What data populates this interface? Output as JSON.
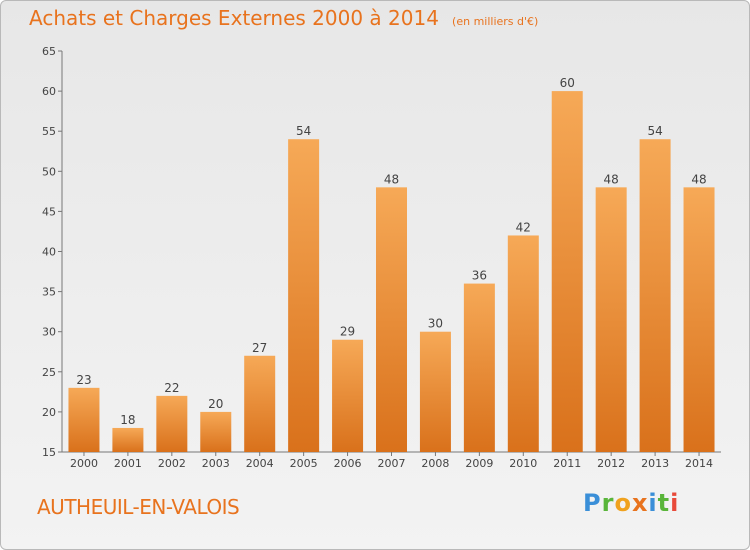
{
  "header": {
    "title": "Achats et Charges Externes 2000 à 2014",
    "unit": "(en milliers d'€)"
  },
  "footer": {
    "place": "AUTHEUIL-EN-VALOIS",
    "logo": "Proxiti"
  },
  "colors": {
    "bar_light": "#f6a957",
    "bar_dark": "#d9711b",
    "text_accent": "#e8731e"
  },
  "chart_data": {
    "type": "bar",
    "title": "Achats et Charges Externes 2000 à 2014",
    "subtitle": "(en milliers d'€)",
    "xlabel": "",
    "ylabel": "",
    "categories": [
      "2000",
      "2001",
      "2002",
      "2003",
      "2004",
      "2005",
      "2006",
      "2007",
      "2008",
      "2009",
      "2010",
      "2011",
      "2012",
      "2013",
      "2014"
    ],
    "values": [
      23,
      18,
      22,
      20,
      27,
      54,
      29,
      48,
      30,
      36,
      42,
      60,
      48,
      54,
      48
    ],
    "ylim": [
      15,
      65
    ],
    "yticks": [
      15,
      20,
      25,
      30,
      35,
      40,
      45,
      50,
      55,
      60,
      65
    ],
    "grid": false,
    "legend": "none"
  }
}
